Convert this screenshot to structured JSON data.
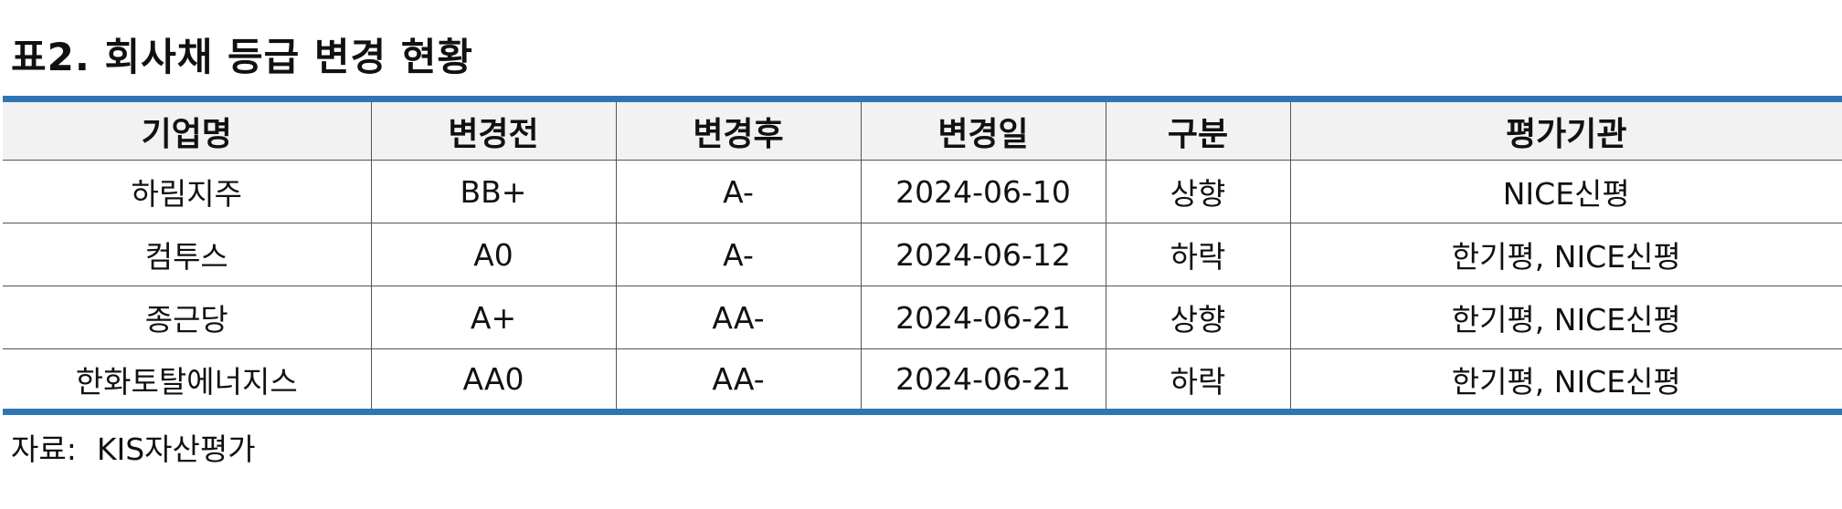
{
  "title": "표2. 회사채 등급 변경 현황",
  "table": {
    "headers": [
      "기업명",
      "변경전",
      "변경후",
      "변경일",
      "구분",
      "평가기관"
    ],
    "rows": [
      [
        "하림지주",
        "BB+",
        "A-",
        "2024-06-10",
        "상향",
        "NICE신평"
      ],
      [
        "컴투스",
        "A0",
        "A-",
        "2024-06-12",
        "하락",
        "한기평, NICE신평"
      ],
      [
        "종근당",
        "A+",
        "AA-",
        "2024-06-21",
        "상향",
        "한기평, NICE신평"
      ],
      [
        "한화토탈에너지스",
        "AA0",
        "AA-",
        "2024-06-21",
        "하락",
        "한기평, NICE신평"
      ]
    ]
  },
  "source": {
    "label": "자료:",
    "value": "KIS자산평가"
  },
  "colors": {
    "accent_border": "#2e75b6",
    "header_bg": "#f2f2f2"
  }
}
